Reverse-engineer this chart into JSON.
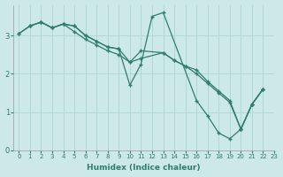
{
  "title": "",
  "xlabel": "Humidex (Indice chaleur)",
  "ylabel": "",
  "bg_color": "#cce8e8",
  "line_color": "#2e7d6e",
  "grid_color": "#b0d8d8",
  "xlim": [
    -0.5,
    23
  ],
  "ylim": [
    0,
    3.8
  ],
  "yticks": [
    0,
    1,
    2,
    3
  ],
  "xticks": [
    0,
    1,
    2,
    3,
    4,
    5,
    6,
    7,
    8,
    9,
    10,
    11,
    12,
    13,
    14,
    15,
    16,
    17,
    18,
    19,
    20,
    21,
    22,
    23
  ],
  "series": [
    {
      "x": [
        1,
        2,
        3,
        4,
        5,
        6,
        7,
        8,
        9,
        10,
        11,
        12,
        13,
        16,
        17,
        18,
        19,
        20,
        21,
        22
      ],
      "y": [
        3.25,
        3.35,
        3.2,
        3.3,
        3.25,
        3.0,
        2.85,
        2.7,
        2.65,
        1.7,
        2.25,
        3.5,
        3.6,
        1.3,
        0.9,
        0.45,
        0.3,
        0.55,
        1.2,
        1.6
      ]
    },
    {
      "x": [
        0,
        1,
        2,
        3,
        4,
        5,
        6,
        7,
        8,
        9,
        10,
        11,
        13,
        14,
        15,
        16,
        17,
        18,
        19,
        20,
        21,
        22
      ],
      "y": [
        3.05,
        3.25,
        3.35,
        3.2,
        3.3,
        3.25,
        3.0,
        2.85,
        2.7,
        2.65,
        2.3,
        2.6,
        2.55,
        2.35,
        2.2,
        2.1,
        1.8,
        1.55,
        1.3,
        0.55,
        1.2,
        1.6
      ]
    },
    {
      "x": [
        0,
        1,
        2,
        3,
        4,
        5,
        6,
        7,
        8,
        9,
        10,
        11,
        13,
        14,
        15,
        16,
        17,
        18,
        19,
        20,
        21,
        22
      ],
      "y": [
        3.05,
        3.25,
        3.35,
        3.2,
        3.3,
        3.1,
        2.9,
        2.75,
        2.6,
        2.5,
        2.3,
        2.4,
        2.55,
        2.35,
        2.2,
        2.0,
        1.75,
        1.5,
        1.25,
        0.55,
        1.2,
        1.6
      ]
    }
  ]
}
